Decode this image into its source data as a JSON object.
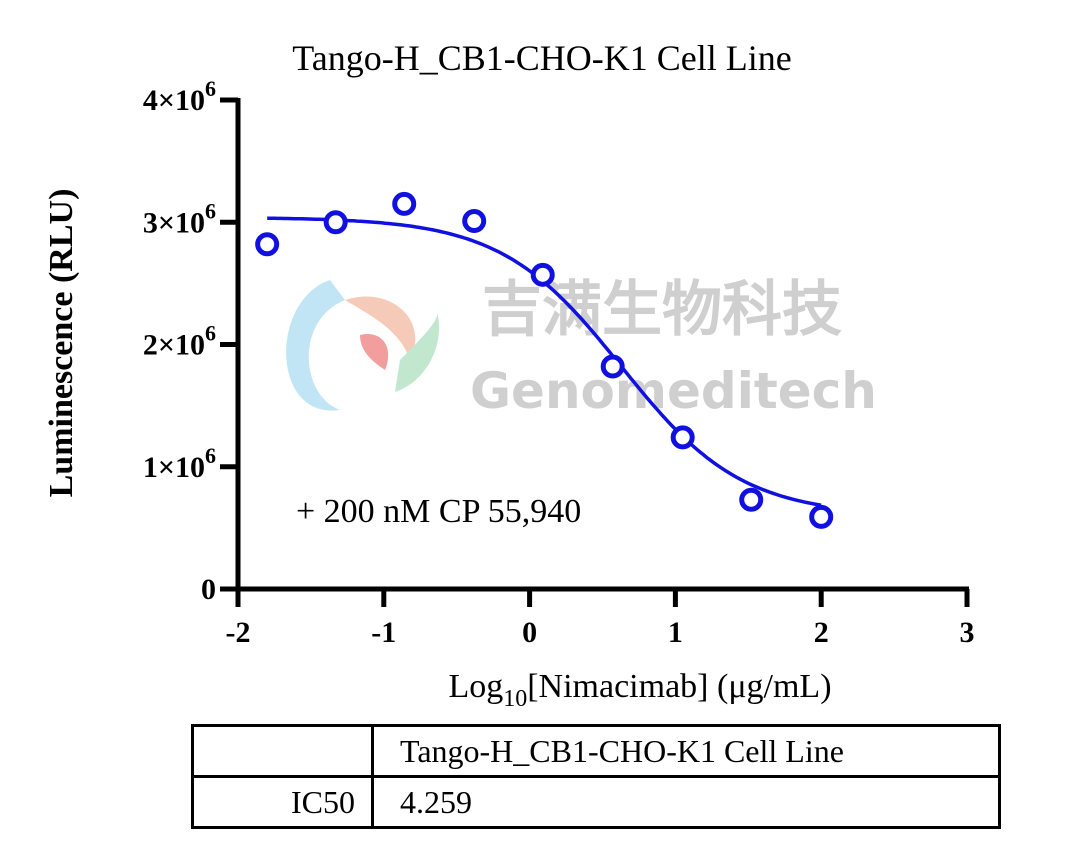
{
  "chart_data": {
    "type": "scatter",
    "title": "Tango-H_CB1-CHO-K1 Cell Line",
    "xlabel_parts": {
      "base": "Log",
      "sub": "10",
      "rest": "[Nimacimab] (μg/mL)"
    },
    "ylabel": "Luminescence (RLU)",
    "xlim": [
      -2,
      3
    ],
    "ylim": [
      0,
      4000000
    ],
    "x_ticks": [
      -2,
      -1,
      0,
      1,
      2,
      3
    ],
    "x_tick_labels": [
      "-2",
      "-1",
      "0",
      "1",
      "2",
      "3"
    ],
    "y_ticks": [
      0,
      1000000,
      2000000,
      3000000,
      4000000
    ],
    "y_tick_labels": [
      {
        "mant": "0",
        "exp": ""
      },
      {
        "mant": "1×10",
        "exp": "6"
      },
      {
        "mant": "2×10",
        "exp": "6"
      },
      {
        "mant": "3×10",
        "exp": "6"
      },
      {
        "mant": "4×10",
        "exp": "6"
      }
    ],
    "grid": false,
    "series": [
      {
        "color": "#1010e0",
        "points": [
          {
            "x": -1.8,
            "y": 2820000
          },
          {
            "x": -1.33,
            "y": 3000000
          },
          {
            "x": -0.86,
            "y": 3150000
          },
          {
            "x": -0.38,
            "y": 3010000
          },
          {
            "x": 0.09,
            "y": 2570000
          },
          {
            "x": 0.57,
            "y": 1820000
          },
          {
            "x": 1.05,
            "y": 1240000
          },
          {
            "x": 1.52,
            "y": 730000
          },
          {
            "x": 2.0,
            "y": 590000
          }
        ],
        "fit": {
          "model": "4PL",
          "top": 3040000,
          "bottom": 600000,
          "log_ic50": 0.629,
          "hill": 1.05,
          "x_range": [
            -1.8,
            2.0
          ]
        }
      }
    ],
    "annotation": "+ 200 nM CP 55,940"
  },
  "watermark": {
    "cn": "吉满生物科技",
    "en": "Genomeditech"
  },
  "table": {
    "header": [
      "",
      "Tango-H_CB1-CHO-K1 Cell Line"
    ],
    "rows": [
      [
        "IC50",
        "4.259"
      ]
    ]
  }
}
